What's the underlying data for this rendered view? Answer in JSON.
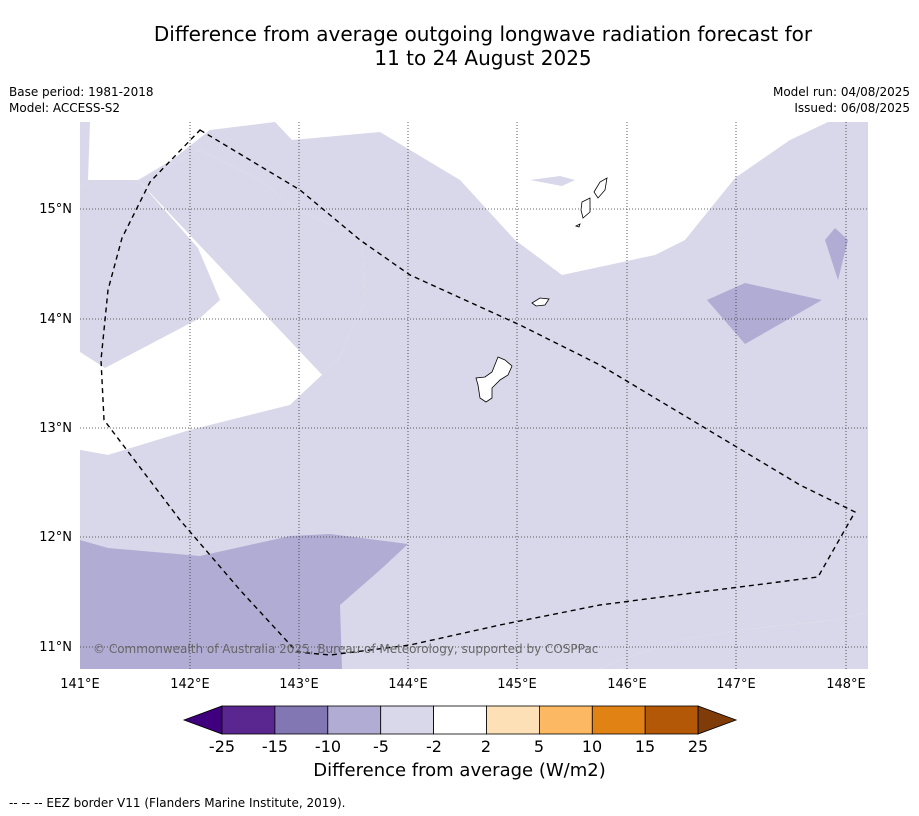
{
  "header": {
    "title_line1": "Difference from average outgoing longwave radiation forecast for",
    "title_line2": "11 to 24 August 2025",
    "base_period": "Base period: 1981-2018",
    "model": "Model: ACCESS-S2",
    "model_run": "Model run: 04/08/2025",
    "issued": "Issued: 06/08/2025"
  },
  "map": {
    "lon_ticks": [
      "141°E",
      "142°E",
      "143°E",
      "144°E",
      "145°E",
      "146°E",
      "147°E",
      "148°E"
    ],
    "lat_ticks": [
      "15°N",
      "14°N",
      "13°N",
      "12°N",
      "11°N"
    ],
    "copyright": "© Commonwealth of Australia 2025, Bureau of Meteorology, supported by COSPPac",
    "colors": {
      "light_purple": "#d8d8ea",
      "mid_purple": "#b1acd3"
    }
  },
  "colorbar": {
    "label": "Difference from average (W/m2)",
    "ticks": [
      "-25",
      "-15",
      "-10",
      "-5",
      "-2",
      "2",
      "5",
      "10",
      "15",
      "25"
    ],
    "colors": [
      "#3f007d",
      "#5a2790",
      "#8276b3",
      "#b1acd3",
      "#d8d8ea",
      "#ffffff",
      "#fde0b6",
      "#fdb863",
      "#e08214",
      "#b35806",
      "#7f3b08"
    ]
  },
  "footer": {
    "eez_note": "--  --  -- EEZ border V11 (Flanders Marine Institute, 2019)."
  }
}
